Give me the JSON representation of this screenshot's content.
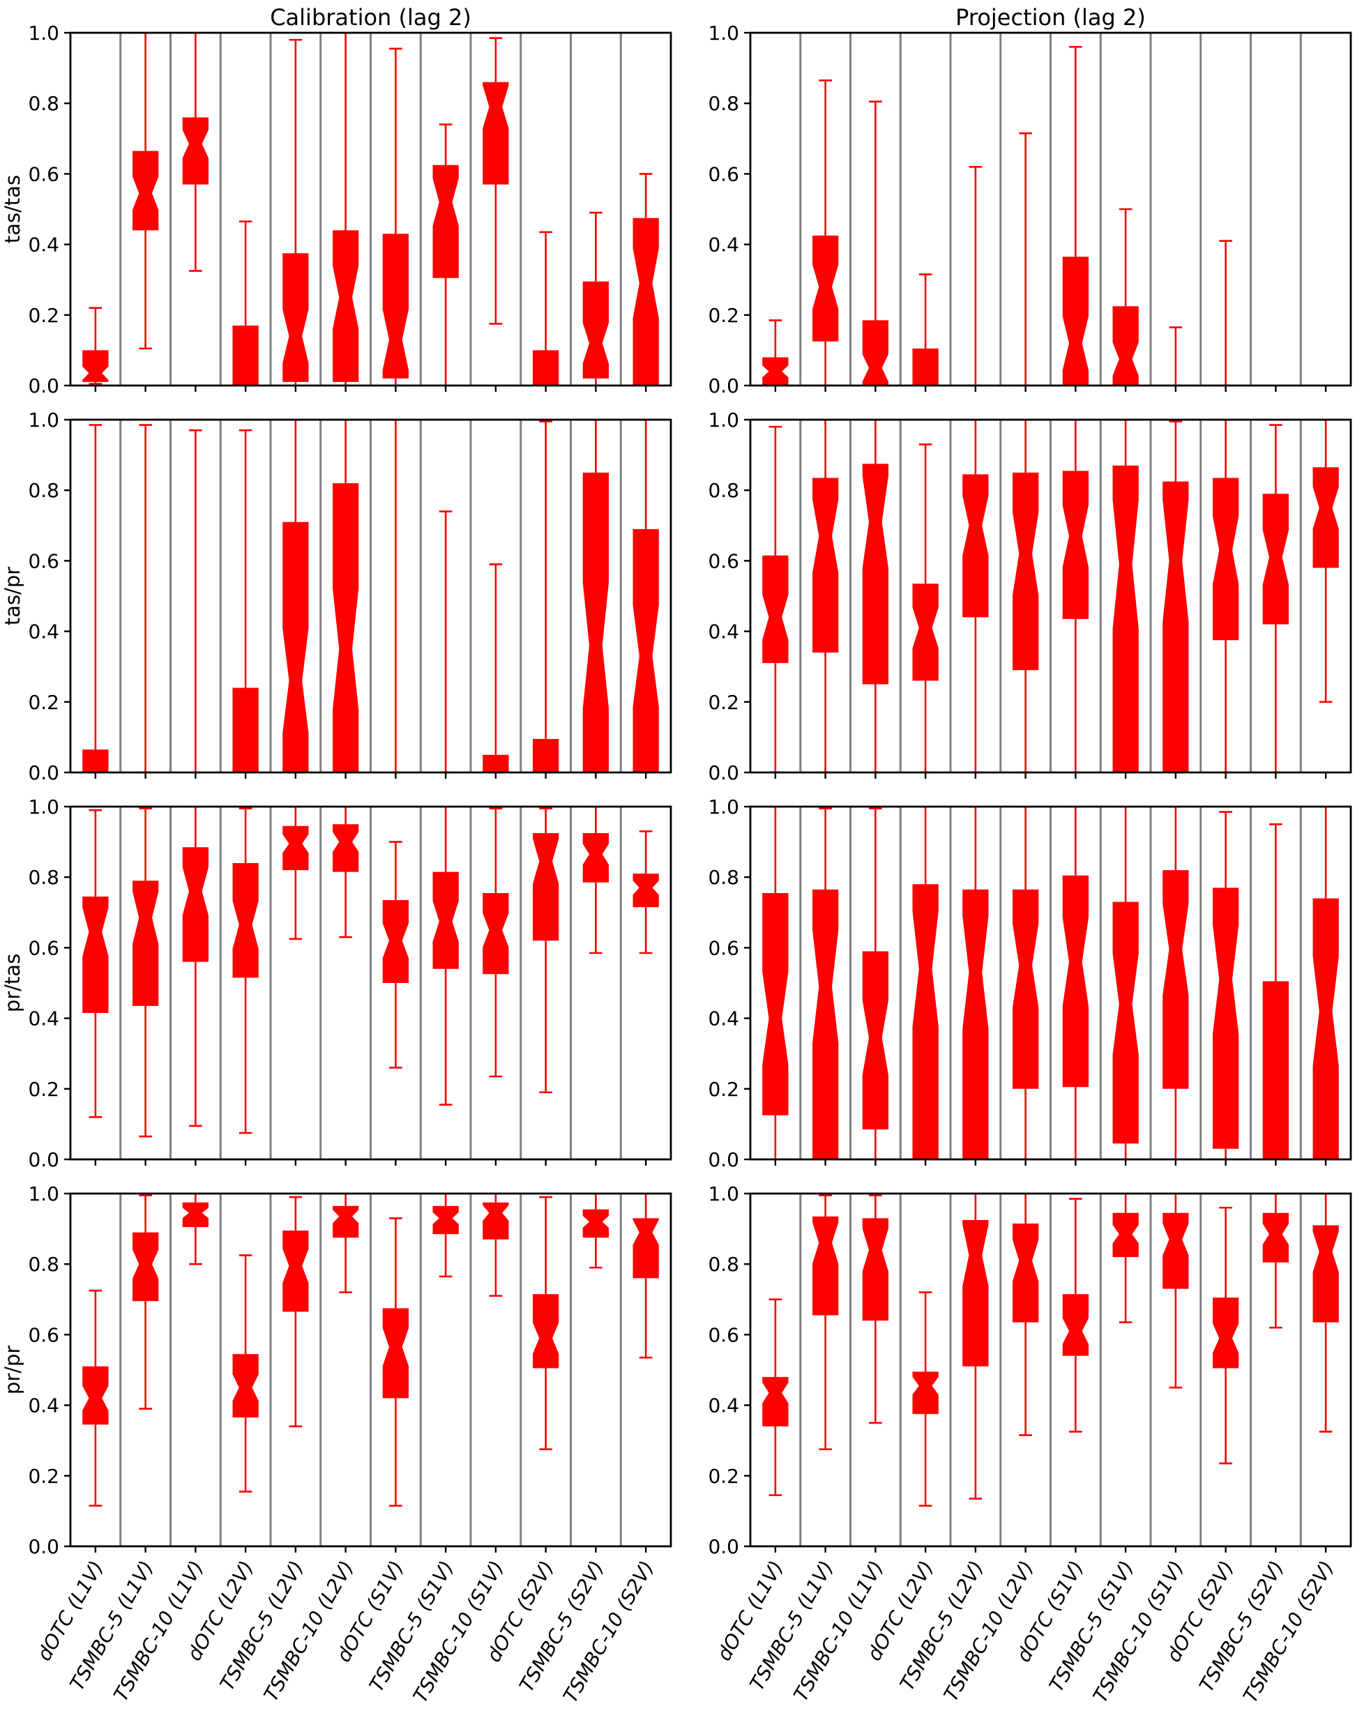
{
  "chart_data": {
    "type": "boxplot",
    "columns": [
      "Calibration (lag 2)",
      "Projection (lag 2)"
    ],
    "rows": [
      "tas/tas",
      "tas/pr",
      "pr/tas",
      "pr/pr"
    ],
    "categories": [
      "dOTC (L1V)",
      "TSMBC-5 (L1V)",
      "TSMBC-10 (L1V)",
      "dOTC (L2V)",
      "TSMBC-5 (L2V)",
      "TSMBC-10 (L2V)",
      "dOTC (S1V)",
      "TSMBC-5 (S1V)",
      "TSMBC-10 (S1V)",
      "dOTC (S2V)",
      "TSMBC-5 (S2V)",
      "TSMBC-10 (S2V)"
    ],
    "ylim": [
      0.0,
      1.0
    ],
    "yticks": [
      "0.0",
      "0.2",
      "0.4",
      "0.6",
      "0.8",
      "1.0"
    ],
    "box_color": "#ff0000",
    "separator_color": "#808080",
    "frame_color": "#000000",
    "grid": "vertical-category-separators",
    "legend": "none",
    "box_stats_format": [
      "whisker_low",
      "q1",
      "median",
      "q3",
      "whisker_high",
      "notched"
    ],
    "subplots": [
      {
        "row": "tas/tas",
        "column": "Calibration (lag 2)",
        "boxes": [
          [
            0.005,
            0.01,
            0.035,
            0.1,
            0.22,
            1
          ],
          [
            0.105,
            0.44,
            0.545,
            0.665,
            1.0,
            1
          ],
          [
            0.325,
            0.57,
            0.685,
            0.76,
            1.0,
            1
          ],
          [
            0.0,
            0.0,
            0.03,
            0.17,
            0.465,
            0
          ],
          [
            0.0,
            0.01,
            0.14,
            0.375,
            0.98,
            1
          ],
          [
            0.0,
            0.01,
            0.25,
            0.44,
            1.0,
            1
          ],
          [
            0.0,
            0.02,
            0.13,
            0.43,
            0.955,
            1
          ],
          [
            0.0,
            0.305,
            0.52,
            0.625,
            0.74,
            1
          ],
          [
            0.175,
            0.57,
            0.79,
            0.86,
            0.985,
            1
          ],
          [
            0.0,
            0.0,
            0.03,
            0.1,
            0.435,
            0
          ],
          [
            0.0,
            0.02,
            0.12,
            0.295,
            0.49,
            1
          ],
          [
            0.0,
            0.0,
            0.29,
            0.475,
            0.6,
            1
          ]
        ]
      },
      {
        "row": "tas/tas",
        "column": "Projection (lag 2)",
        "boxes": [
          [
            0.0,
            0.0,
            0.04,
            0.08,
            0.185,
            1
          ],
          [
            0.0,
            0.125,
            0.28,
            0.425,
            0.865,
            1
          ],
          [
            0.0,
            0.0,
            0.05,
            0.185,
            0.805,
            1
          ],
          [
            0.0,
            0.0,
            0.03,
            0.105,
            0.315,
            0
          ],
          [
            0.0,
            0.0,
            0.0,
            0.0,
            0.62,
            0
          ],
          [
            0.0,
            0.0,
            0.0,
            0.0,
            0.715,
            0
          ],
          [
            0.0,
            0.0,
            0.12,
            0.365,
            0.96,
            1
          ],
          [
            0.0,
            0.0,
            0.075,
            0.225,
            0.5,
            1
          ],
          [
            0.0,
            0.0,
            0.0,
            0.0,
            0.165,
            0
          ],
          [
            0.0,
            0.0,
            0.0,
            0.0,
            0.41,
            0
          ],
          [
            0.0,
            0.0,
            0.0,
            0.0,
            0.0,
            0
          ],
          [
            0.0,
            0.0,
            0.0,
            0.0,
            0.0,
            0
          ]
        ]
      },
      {
        "row": "tas/pr",
        "column": "Calibration (lag 2)",
        "boxes": [
          [
            0.0,
            0.0,
            0.03,
            0.065,
            0.985,
            0
          ],
          [
            0.0,
            0.0,
            0.0,
            0.0,
            0.985,
            0
          ],
          [
            0.0,
            0.0,
            0.0,
            0.0,
            0.97,
            0
          ],
          [
            0.0,
            0.0,
            0.1,
            0.24,
            0.97,
            0
          ],
          [
            0.0,
            0.0,
            0.26,
            0.71,
            1.0,
            1
          ],
          [
            0.0,
            0.0,
            0.35,
            0.82,
            1.0,
            1
          ],
          [
            0.0,
            0.0,
            0.0,
            0.0,
            1.0,
            0
          ],
          [
            0.0,
            0.0,
            0.0,
            0.0,
            0.74,
            0
          ],
          [
            0.0,
            0.0,
            0.02,
            0.05,
            0.59,
            0
          ],
          [
            0.0,
            0.0,
            0.04,
            0.095,
            0.995,
            0
          ],
          [
            0.0,
            0.0,
            0.36,
            0.85,
            1.0,
            1
          ],
          [
            0.0,
            0.0,
            0.33,
            0.69,
            1.0,
            1
          ]
        ]
      },
      {
        "row": "tas/pr",
        "column": "Projection (lag 2)",
        "boxes": [
          [
            0.0,
            0.31,
            0.44,
            0.615,
            0.98,
            1
          ],
          [
            0.0,
            0.34,
            0.67,
            0.835,
            1.0,
            1
          ],
          [
            0.0,
            0.25,
            0.71,
            0.875,
            1.0,
            1
          ],
          [
            0.0,
            0.26,
            0.41,
            0.535,
            0.93,
            1
          ],
          [
            0.0,
            0.44,
            0.7,
            0.845,
            1.0,
            1
          ],
          [
            0.0,
            0.29,
            0.62,
            0.85,
            1.0,
            1
          ],
          [
            0.0,
            0.435,
            0.67,
            0.855,
            1.0,
            1
          ],
          [
            0.0,
            0.0,
            0.59,
            0.87,
            1.0,
            1
          ],
          [
            0.0,
            0.0,
            0.6,
            0.825,
            0.995,
            1
          ],
          [
            0.0,
            0.375,
            0.63,
            0.835,
            1.0,
            1
          ],
          [
            0.0,
            0.42,
            0.61,
            0.79,
            0.985,
            1
          ],
          [
            0.2,
            0.58,
            0.75,
            0.865,
            1.0,
            1
          ]
        ]
      },
      {
        "row": "pr/tas",
        "column": "Calibration (lag 2)",
        "boxes": [
          [
            0.12,
            0.415,
            0.645,
            0.745,
            0.99,
            1
          ],
          [
            0.065,
            0.435,
            0.685,
            0.79,
            0.995,
            1
          ],
          [
            0.095,
            0.56,
            0.76,
            0.885,
            1.0,
            1
          ],
          [
            0.075,
            0.515,
            0.665,
            0.84,
            0.995,
            1
          ],
          [
            0.625,
            0.82,
            0.895,
            0.945,
            1.0,
            1
          ],
          [
            0.63,
            0.815,
            0.9,
            0.95,
            1.0,
            1
          ],
          [
            0.26,
            0.5,
            0.62,
            0.735,
            0.9,
            1
          ],
          [
            0.155,
            0.54,
            0.675,
            0.815,
            1.0,
            1
          ],
          [
            0.235,
            0.525,
            0.65,
            0.755,
            0.995,
            1
          ],
          [
            0.19,
            0.62,
            0.845,
            0.925,
            0.995,
            1
          ],
          [
            0.585,
            0.785,
            0.865,
            0.925,
            1.0,
            1
          ],
          [
            0.585,
            0.715,
            0.77,
            0.81,
            0.93,
            1
          ]
        ]
      },
      {
        "row": "pr/tas",
        "column": "Projection (lag 2)",
        "boxes": [
          [
            0.0,
            0.125,
            0.4,
            0.755,
            1.0,
            1
          ],
          [
            0.0,
            0.0,
            0.49,
            0.765,
            0.995,
            1
          ],
          [
            0.0,
            0.085,
            0.345,
            0.59,
            0.995,
            1
          ],
          [
            0.0,
            0.0,
            0.54,
            0.78,
            1.0,
            1
          ],
          [
            0.0,
            0.0,
            0.53,
            0.765,
            1.0,
            1
          ],
          [
            0.0,
            0.2,
            0.55,
            0.765,
            1.0,
            1
          ],
          [
            0.0,
            0.205,
            0.56,
            0.805,
            1.0,
            1
          ],
          [
            0.0,
            0.045,
            0.44,
            0.73,
            1.0,
            1
          ],
          [
            0.0,
            0.2,
            0.595,
            0.82,
            1.0,
            1
          ],
          [
            0.0,
            0.03,
            0.51,
            0.77,
            0.985,
            1
          ],
          [
            0.0,
            0.0,
            0.25,
            0.505,
            0.95,
            0
          ],
          [
            0.0,
            0.0,
            0.42,
            0.74,
            1.0,
            1
          ]
        ]
      },
      {
        "row": "pr/pr",
        "column": "Calibration (lag 2)",
        "boxes": [
          [
            0.115,
            0.345,
            0.42,
            0.51,
            0.725,
            1
          ],
          [
            0.39,
            0.695,
            0.8,
            0.89,
            0.995,
            1
          ],
          [
            0.8,
            0.905,
            0.945,
            0.975,
            1.0,
            1
          ],
          [
            0.155,
            0.365,
            0.45,
            0.545,
            0.825,
            1
          ],
          [
            0.34,
            0.665,
            0.795,
            0.895,
            0.99,
            1
          ],
          [
            0.72,
            0.875,
            0.935,
            0.965,
            1.0,
            1
          ],
          [
            0.115,
            0.42,
            0.565,
            0.675,
            0.93,
            1
          ],
          [
            0.765,
            0.885,
            0.93,
            0.965,
            1.0,
            1
          ],
          [
            0.71,
            0.87,
            0.945,
            0.975,
            1.0,
            1
          ],
          [
            0.275,
            0.505,
            0.59,
            0.715,
            0.99,
            1
          ],
          [
            0.79,
            0.875,
            0.92,
            0.955,
            1.0,
            1
          ],
          [
            0.535,
            0.76,
            0.89,
            0.93,
            1.0,
            1
          ]
        ]
      },
      {
        "row": "pr/pr",
        "column": "Projection (lag 2)",
        "boxes": [
          [
            0.145,
            0.34,
            0.435,
            0.48,
            0.7,
            1
          ],
          [
            0.275,
            0.655,
            0.86,
            0.935,
            0.995,
            1
          ],
          [
            0.35,
            0.64,
            0.84,
            0.93,
            0.995,
            1
          ],
          [
            0.115,
            0.375,
            0.455,
            0.495,
            0.72,
            1
          ],
          [
            0.135,
            0.51,
            0.825,
            0.925,
            1.0,
            1
          ],
          [
            0.315,
            0.635,
            0.81,
            0.915,
            1.0,
            1
          ],
          [
            0.325,
            0.54,
            0.61,
            0.715,
            0.985,
            1
          ],
          [
            0.635,
            0.82,
            0.885,
            0.945,
            1.0,
            1
          ],
          [
            0.45,
            0.73,
            0.87,
            0.945,
            1.0,
            1
          ],
          [
            0.235,
            0.505,
            0.59,
            0.705,
            0.96,
            1
          ],
          [
            0.62,
            0.805,
            0.885,
            0.945,
            1.0,
            1
          ],
          [
            0.325,
            0.635,
            0.835,
            0.91,
            1.0,
            1
          ]
        ]
      }
    ]
  }
}
